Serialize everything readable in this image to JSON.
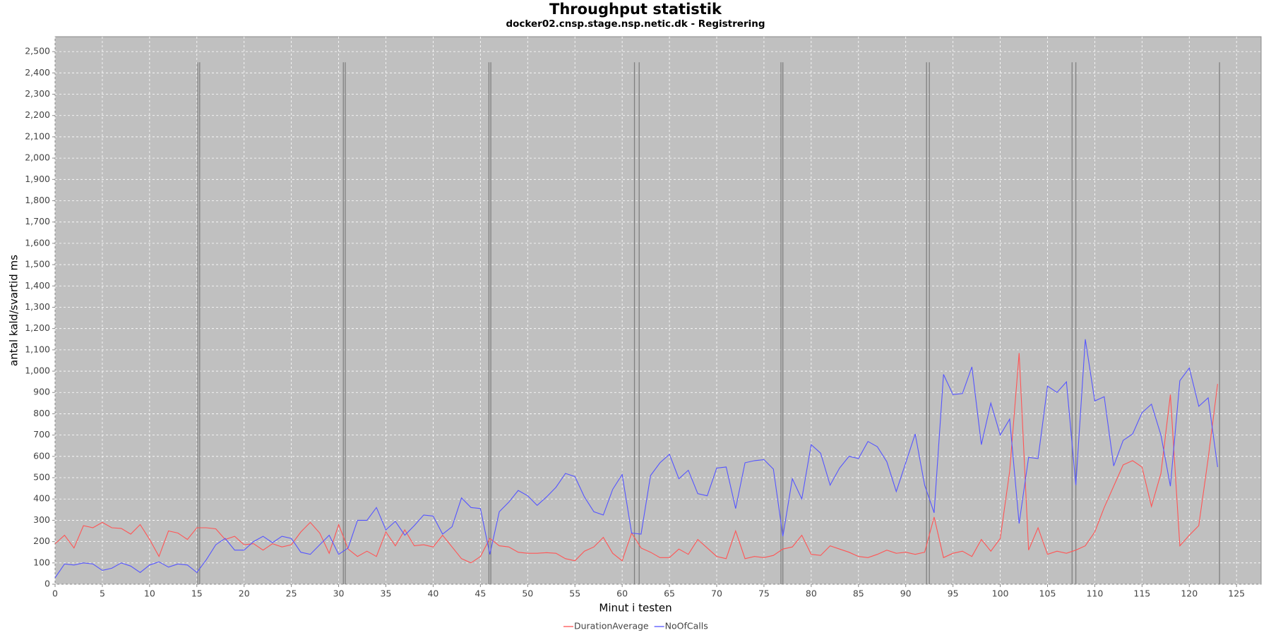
{
  "chart_data": {
    "type": "line",
    "title": "Throughput statistik",
    "subtitle": "docker02.cnsp.stage.nsp.netic.dk - Registrering",
    "x_label": "Minut i testen",
    "y_label": "antal kald/svartid ms",
    "x": [
      0,
      1,
      2,
      3,
      4,
      5,
      6,
      7,
      8,
      9,
      10,
      11,
      12,
      13,
      14,
      15,
      16,
      17,
      18,
      19,
      20,
      21,
      22,
      23,
      24,
      25,
      26,
      27,
      28,
      29,
      30,
      31,
      32,
      33,
      34,
      35,
      36,
      37,
      38,
      39,
      40,
      41,
      42,
      43,
      44,
      45,
      46,
      47,
      48,
      49,
      50,
      51,
      52,
      53,
      54,
      55,
      56,
      57,
      58,
      59,
      60,
      61,
      62,
      63,
      64,
      65,
      66,
      67,
      68,
      69,
      70,
      71,
      72,
      73,
      74,
      75,
      76,
      77,
      78,
      79,
      80,
      81,
      82,
      83,
      84,
      85,
      86,
      87,
      88,
      89,
      90,
      91,
      92,
      93,
      94,
      95,
      96,
      97,
      98,
      99,
      100,
      101,
      102,
      103,
      104,
      105,
      106,
      107,
      108,
      109,
      110,
      111,
      112,
      113,
      114,
      115,
      116,
      117,
      118,
      119,
      120,
      121,
      122,
      123
    ],
    "series": [
      {
        "name": "DurationAverage",
        "color": "#ff5555",
        "values": [
          190,
          230,
          170,
          275,
          265,
          290,
          265,
          262,
          235,
          280,
          210,
          130,
          250,
          240,
          210,
          265,
          265,
          260,
          210,
          225,
          185,
          190,
          160,
          190,
          175,
          185,
          245,
          290,
          240,
          145,
          280,
          165,
          130,
          155,
          130,
          245,
          180,
          255,
          180,
          185,
          175,
          230,
          175,
          120,
          100,
          130,
          215,
          180,
          175,
          150,
          145,
          145,
          148,
          145,
          120,
          110,
          155,
          175,
          220,
          145,
          110,
          240,
          170,
          150,
          125,
          125,
          165,
          140,
          210,
          170,
          130,
          120,
          250,
          120,
          130,
          125,
          135,
          165,
          175,
          230,
          140,
          135,
          180,
          165,
          150,
          130,
          125,
          140,
          160,
          145,
          150,
          140,
          150,
          315,
          125,
          145,
          155,
          130,
          210,
          155,
          215,
          530,
          1085,
          160,
          265,
          140,
          155,
          145,
          160,
          180,
          245,
          360,
          460,
          560,
          580,
          550,
          365,
          520,
          890,
          180,
          230,
          275,
          590,
          940
        ]
      },
      {
        "name": "NoOfCalls",
        "color": "#5555ff",
        "values": [
          30,
          95,
          90,
          100,
          95,
          65,
          75,
          100,
          85,
          55,
          90,
          105,
          80,
          95,
          90,
          55,
          115,
          185,
          215,
          160,
          160,
          200,
          225,
          195,
          225,
          215,
          150,
          140,
          185,
          230,
          140,
          170,
          300,
          300,
          360,
          255,
          295,
          230,
          275,
          325,
          320,
          235,
          270,
          405,
          360,
          355,
          140,
          340,
          385,
          440,
          415,
          370,
          410,
          455,
          520,
          505,
          410,
          340,
          325,
          445,
          515,
          240,
          235,
          510,
          570,
          610,
          495,
          535,
          425,
          415,
          545,
          550,
          355,
          570,
          580,
          585,
          540,
          225,
          495,
          400,
          655,
          615,
          465,
          545,
          600,
          590,
          670,
          645,
          575,
          435,
          570,
          705,
          465,
          335,
          985,
          890,
          895,
          1020,
          655,
          850,
          700,
          775,
          285,
          595,
          590,
          930,
          900,
          950,
          465,
          1150,
          860,
          880,
          555,
          675,
          705,
          805,
          845,
          700,
          460,
          955,
          1015,
          835,
          875,
          550
        ]
      }
    ],
    "markers": [
      15.1,
      15.3,
      30.5,
      30.7,
      45.9,
      46.1,
      61.3,
      61.8,
      76.8,
      77.0,
      92.2,
      92.5,
      107.6,
      108.0,
      123.2
    ],
    "marker_ymax": 2450,
    "xlim": [
      0,
      127.6
    ],
    "ylim": [
      0,
      2570
    ],
    "xticks": [
      0,
      5,
      10,
      15,
      20,
      25,
      30,
      35,
      40,
      45,
      50,
      55,
      60,
      65,
      70,
      75,
      80,
      85,
      90,
      95,
      100,
      105,
      110,
      115,
      120,
      125
    ],
    "yticks": [
      0,
      100,
      200,
      300,
      400,
      500,
      600,
      700,
      800,
      900,
      {
        "value": 1000,
        "label": "1,000"
      },
      {
        "value": 1100,
        "label": "1,100"
      },
      {
        "value": 1200,
        "label": "1,200"
      },
      {
        "value": 1300,
        "label": "1,300"
      },
      {
        "value": 1400,
        "label": "1,400"
      },
      {
        "value": 1500,
        "label": "1,500"
      },
      {
        "value": 1600,
        "label": "1,600"
      },
      {
        "value": 1700,
        "label": "1,700"
      },
      {
        "value": 1800,
        "label": "1,800"
      },
      {
        "value": 1900,
        "label": "1,900"
      },
      {
        "value": 2000,
        "label": "2,000"
      },
      {
        "value": 2100,
        "label": "2,100"
      },
      {
        "value": 2200,
        "label": "2,200"
      },
      {
        "value": 2300,
        "label": "2,300"
      },
      {
        "value": 2400,
        "label": "2,400"
      },
      {
        "value": 2500,
        "label": "2,500"
      }
    ],
    "grid": true,
    "legend": "bottom",
    "background": "#c0c0c0",
    "marker_color": "#808080"
  }
}
